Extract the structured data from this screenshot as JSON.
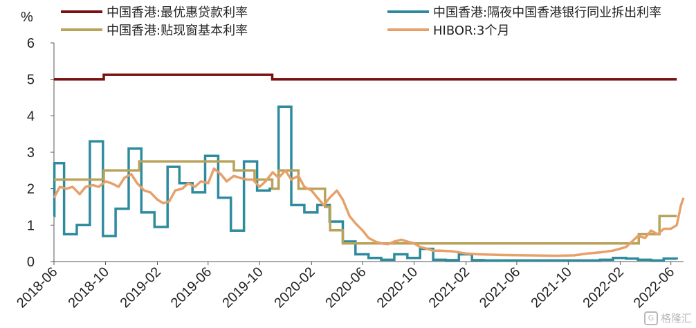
{
  "chart_data": {
    "type": "line",
    "y_unit": "%",
    "ylim": [
      0,
      6
    ],
    "yticks": [
      "0",
      "1",
      "2",
      "3",
      "4",
      "5",
      "6"
    ],
    "xlim": [
      "2018-06",
      "2022-07"
    ],
    "xticks": [
      "2018-06",
      "2018-10",
      "2019-02",
      "2019-06",
      "2019-10",
      "2020-02",
      "2020-06",
      "2020-10",
      "2021-02",
      "2021-06",
      "2021-10",
      "2022-02",
      "2022-06"
    ],
    "step_series": [
      {
        "name": "中国香港:最优惠贷款利率",
        "color": "#7a0f0f",
        "points": [
          [
            "2018-06-01",
            5.0
          ],
          [
            "2018-09-27",
            5.125
          ],
          [
            "2019-10-31",
            5.0
          ],
          [
            "2022-06-15",
            5.0
          ]
        ]
      },
      {
        "name": "中国香港:隔夜中国香港银行同业拆出利率",
        "color": "#2e8b9e",
        "points": [
          [
            "2018-06-01",
            1.25
          ],
          [
            "2018-06-02",
            2.7
          ],
          [
            "2018-06-25",
            0.75
          ],
          [
            "2018-07-25",
            1.0
          ],
          [
            "2018-08-25",
            3.3
          ],
          [
            "2018-09-25",
            0.7
          ],
          [
            "2018-10-25",
            1.45
          ],
          [
            "2018-11-25",
            3.1
          ],
          [
            "2018-12-25",
            1.35
          ],
          [
            "2019-01-25",
            0.95
          ],
          [
            "2019-02-25",
            2.6
          ],
          [
            "2019-03-25",
            2.15
          ],
          [
            "2019-04-25",
            1.9
          ],
          [
            "2019-05-25",
            2.9
          ],
          [
            "2019-06-25",
            1.75
          ],
          [
            "2019-07-25",
            0.85
          ],
          [
            "2019-08-25",
            2.75
          ],
          [
            "2019-09-25",
            1.95
          ],
          [
            "2019-10-25",
            2.0
          ],
          [
            "2019-11-15",
            4.25
          ],
          [
            "2019-12-15",
            1.55
          ],
          [
            "2020-01-15",
            1.35
          ],
          [
            "2020-02-15",
            1.55
          ],
          [
            "2020-03-15",
            1.1
          ],
          [
            "2020-04-15",
            0.55
          ],
          [
            "2020-05-15",
            0.2
          ],
          [
            "2020-06-15",
            0.1
          ],
          [
            "2020-07-15",
            0.05
          ],
          [
            "2020-08-15",
            0.2
          ],
          [
            "2020-09-15",
            0.1
          ],
          [
            "2020-10-15",
            0.35
          ],
          [
            "2020-11-15",
            0.05
          ],
          [
            "2020-12-15",
            0.04
          ],
          [
            "2021-01-15",
            0.2
          ],
          [
            "2021-02-15",
            0.04
          ],
          [
            "2021-03-15",
            0.03
          ],
          [
            "2021-12-15",
            0.05
          ],
          [
            "2022-01-15",
            0.1
          ],
          [
            "2022-02-15",
            0.08
          ],
          [
            "2022-03-15",
            0.05
          ],
          [
            "2022-04-15",
            0.03
          ],
          [
            "2022-05-15",
            0.08
          ],
          [
            "2022-06-15",
            0.06
          ]
        ]
      },
      {
        "name": "中国香港:贴现窗基本利率",
        "color": "#b9a25a",
        "points": [
          [
            "2018-06-01",
            2.25
          ],
          [
            "2018-09-27",
            2.5
          ],
          [
            "2018-12-20",
            2.75
          ],
          [
            "2019-08-01",
            2.5
          ],
          [
            "2019-09-19",
            2.25
          ],
          [
            "2019-10-31",
            2.0
          ],
          [
            "2019-11-15",
            2.5
          ],
          [
            "2020-01-01",
            2.0
          ],
          [
            "2020-03-04",
            1.5
          ],
          [
            "2020-03-16",
            0.86
          ],
          [
            "2020-04-15",
            0.5
          ],
          [
            "2022-03-17",
            0.75
          ],
          [
            "2022-05-05",
            1.25
          ],
          [
            "2022-06-15",
            1.25
          ]
        ]
      }
    ],
    "line_series": [
      {
        "name": "HIBOR:3个月",
        "color": "#e7a06a",
        "points": [
          [
            "2018-06-01",
            1.75
          ],
          [
            "2018-06-15",
            2.05
          ],
          [
            "2018-07-01",
            2.0
          ],
          [
            "2018-07-15",
            2.05
          ],
          [
            "2018-08-01",
            1.85
          ],
          [
            "2018-08-15",
            2.05
          ],
          [
            "2018-09-01",
            2.1
          ],
          [
            "2018-09-15",
            2.05
          ],
          [
            "2018-10-01",
            2.2
          ],
          [
            "2018-10-15",
            2.15
          ],
          [
            "2018-11-01",
            2.05
          ],
          [
            "2018-11-15",
            2.3
          ],
          [
            "2018-12-01",
            2.4
          ],
          [
            "2018-12-15",
            2.15
          ],
          [
            "2019-01-01",
            1.95
          ],
          [
            "2019-01-15",
            1.9
          ],
          [
            "2019-02-01",
            1.7
          ],
          [
            "2019-02-15",
            1.6
          ],
          [
            "2019-03-01",
            1.65
          ],
          [
            "2019-03-15",
            1.95
          ],
          [
            "2019-04-01",
            2.0
          ],
          [
            "2019-04-15",
            2.15
          ],
          [
            "2019-05-01",
            2.05
          ],
          [
            "2019-05-15",
            2.2
          ],
          [
            "2019-06-01",
            2.15
          ],
          [
            "2019-06-15",
            2.55
          ],
          [
            "2019-07-01",
            2.4
          ],
          [
            "2019-07-15",
            2.2
          ],
          [
            "2019-08-01",
            2.35
          ],
          [
            "2019-08-15",
            2.3
          ],
          [
            "2019-09-01",
            2.25
          ],
          [
            "2019-09-15",
            2.25
          ],
          [
            "2019-10-01",
            2.05
          ],
          [
            "2019-10-15",
            2.2
          ],
          [
            "2019-11-01",
            2.45
          ],
          [
            "2019-11-15",
            2.3
          ],
          [
            "2019-12-01",
            2.5
          ],
          [
            "2019-12-15",
            2.25
          ],
          [
            "2020-01-01",
            2.35
          ],
          [
            "2020-01-15",
            2.05
          ],
          [
            "2020-02-01",
            1.95
          ],
          [
            "2020-02-15",
            1.75
          ],
          [
            "2020-03-01",
            1.55
          ],
          [
            "2020-03-15",
            1.75
          ],
          [
            "2020-04-01",
            1.95
          ],
          [
            "2020-04-15",
            1.7
          ],
          [
            "2020-05-01",
            1.25
          ],
          [
            "2020-05-15",
            1.05
          ],
          [
            "2020-06-01",
            0.85
          ],
          [
            "2020-06-15",
            0.65
          ],
          [
            "2020-07-01",
            0.55
          ],
          [
            "2020-07-15",
            0.5
          ],
          [
            "2020-08-01",
            0.48
          ],
          [
            "2020-08-15",
            0.55
          ],
          [
            "2020-09-01",
            0.6
          ],
          [
            "2020-09-15",
            0.55
          ],
          [
            "2020-10-01",
            0.5
          ],
          [
            "2020-10-15",
            0.4
          ],
          [
            "2020-11-01",
            0.35
          ],
          [
            "2020-11-15",
            0.3
          ],
          [
            "2020-12-01",
            0.3
          ],
          [
            "2021-01-01",
            0.28
          ],
          [
            "2021-02-01",
            0.22
          ],
          [
            "2021-03-01",
            0.2
          ],
          [
            "2021-05-01",
            0.18
          ],
          [
            "2021-07-01",
            0.17
          ],
          [
            "2021-09-01",
            0.16
          ],
          [
            "2021-10-15",
            0.17
          ],
          [
            "2021-11-15",
            0.22
          ],
          [
            "2021-12-15",
            0.25
          ],
          [
            "2022-01-15",
            0.3
          ],
          [
            "2022-02-15",
            0.4
          ],
          [
            "2022-03-01",
            0.55
          ],
          [
            "2022-03-15",
            0.7
          ],
          [
            "2022-04-01",
            0.65
          ],
          [
            "2022-04-15",
            0.85
          ],
          [
            "2022-05-01",
            0.75
          ],
          [
            "2022-05-15",
            0.9
          ],
          [
            "2022-06-01",
            0.9
          ],
          [
            "2022-06-15",
            1.0
          ],
          [
            "2022-06-25",
            1.55
          ],
          [
            "2022-07-01",
            1.75
          ]
        ]
      }
    ]
  },
  "legend": [
    {
      "label": "中国香港:最优惠贷款利率",
      "color": "#7a0f0f"
    },
    {
      "label": "中国香港:隔夜中国香港银行同业拆出利率",
      "color": "#2e8b9e"
    },
    {
      "label": "中国香港:贴现窗基本利率",
      "color": "#b9a25a"
    },
    {
      "label": "HIBOR:3个月",
      "color": "#e7a06a"
    }
  ],
  "unit_label": "%",
  "watermark": "格隆汇"
}
